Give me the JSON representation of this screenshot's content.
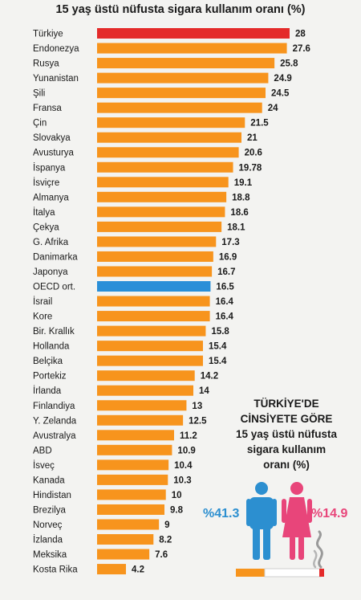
{
  "title": "15 yaş üstü nüfusta sigara kullanım oranı (%)",
  "chart_data": {
    "type": "bar",
    "orientation": "horizontal",
    "title": "15 yaş üstü nüfusta sigara kullanım oranı (%)",
    "categories": [
      "Türkiye",
      "Endonezya",
      "Rusya",
      "Yunanistan",
      "Şili",
      "Fransa",
      "Çin",
      "Slovakya",
      "Avusturya",
      "İspanya",
      "İsviçre",
      "Almanya",
      "İtalya",
      "Çekya",
      "G. Afrika",
      "Danimarka",
      "Japonya",
      "OECD ort.",
      "İsrail",
      "Kore",
      "Bir. Krallık",
      "Hollanda",
      "Belçika",
      "Portekiz",
      "İrlanda",
      "Finlandiya",
      "Y. Zelanda",
      "Avustralya",
      "ABD",
      "İsveç",
      "Kanada",
      "Hindistan",
      "Brezilya",
      "Norveç",
      "İzlanda",
      "Meksika",
      "Kosta Rika"
    ],
    "values": [
      28,
      27.6,
      25.8,
      24.9,
      24.5,
      24,
      21.5,
      21,
      20.6,
      19.78,
      19.1,
      18.8,
      18.6,
      18.1,
      17.3,
      16.9,
      16.7,
      16.5,
      16.4,
      16.4,
      15.8,
      15.4,
      15.4,
      14.2,
      14,
      13,
      12.5,
      11.2,
      10.9,
      10.4,
      10.3,
      10,
      9.8,
      9,
      8.2,
      7.6,
      4.2
    ],
    "value_labels": [
      "28",
      "27.6",
      "25.8",
      "24.9",
      "24.5",
      "24",
      "21.5",
      "21",
      "20.6",
      "19.78",
      "19.1",
      "18.8",
      "18.6",
      "18.1",
      "17.3",
      "16.9",
      "16.7",
      "16.5",
      "16.4",
      "16.4",
      "15.8",
      "15.4",
      "15.4",
      "14.2",
      "14",
      "13",
      "12.5",
      "11.2",
      "10.9",
      "10.4",
      "10.3",
      "10",
      "9.8",
      "9",
      "8.2",
      "7.6",
      "4.2"
    ],
    "highlight": {
      "Türkiye": "#e42a2a",
      "OECD ort.": "#2a8fd8"
    },
    "bar_color": "#f7941d",
    "xlim": [
      0,
      28
    ],
    "grid": false,
    "legend": "none"
  },
  "gender_panel": {
    "title_lines": [
      "TÜRKİYE'DE",
      "CİNSİYETE GÖRE",
      "15 yaş üstü nüfusta",
      "sigara kullanım",
      "oranı (%)"
    ],
    "male_value": "%41.3",
    "female_value": "%14.9",
    "male_color": "#2c8fd0",
    "female_color": "#e8457a"
  }
}
